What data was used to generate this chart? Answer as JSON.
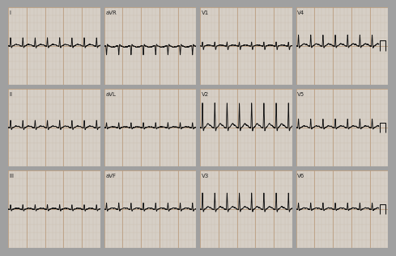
{
  "figure_bg": "#b0b0b0",
  "panel_bg": "#d6cfc6",
  "grid_minor_color": "#c8b8a8",
  "grid_major_color": "#b89878",
  "ecg_color": "#111111",
  "label_color": "#222222",
  "separator_color": "#a0a0a0",
  "rows": 3,
  "cols": 4,
  "labels": [
    [
      "I",
      "aVR",
      "V1",
      "V4"
    ],
    [
      "II",
      "aVL",
      "V2",
      "V5"
    ],
    [
      "III",
      "aVF",
      "V3",
      "V6"
    ]
  ],
  "label_fontsize": 5.0,
  "fig_width": 4.74,
  "fig_height": 3.01,
  "heart_rate": 150
}
